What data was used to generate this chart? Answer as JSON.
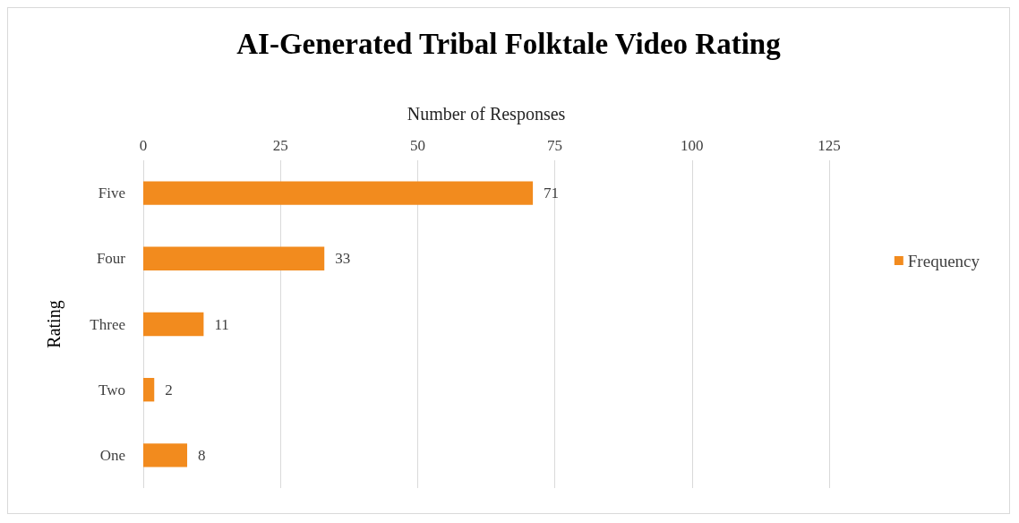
{
  "chart_data": {
    "type": "bar",
    "orientation": "horizontal",
    "title": "AI-Generated Tribal Folktale Video Rating",
    "xlabel": "Number of Responses",
    "ylabel": "Rating",
    "categories": [
      "Five",
      "Four",
      "Three",
      "Two",
      "One"
    ],
    "series": [
      {
        "name": "Frequency",
        "color": "#f28b1e",
        "values": [
          71,
          33,
          11,
          2,
          8
        ]
      }
    ],
    "xlim": [
      0,
      125
    ],
    "xticks": [
      0,
      25,
      50,
      75,
      100,
      125
    ],
    "grid": "x",
    "legend": "right",
    "data_labels": true
  }
}
